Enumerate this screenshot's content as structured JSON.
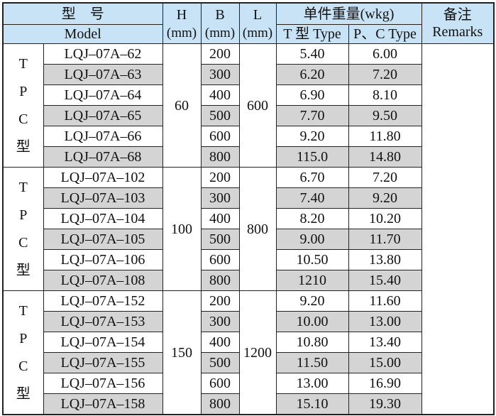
{
  "header": {
    "model_cn": "型　号",
    "model_en": "Model",
    "h": "H",
    "h_unit": "(mm)",
    "b": "B",
    "b_unit": "(mm)",
    "l": "L",
    "l_unit": "(mm)",
    "weight": "单件重量(wkg)",
    "t_type": "T 型 Type",
    "pc_type": "P、C Type",
    "remarks_cn": "备注",
    "remarks_en": "Remarks"
  },
  "groups": [
    {
      "label": [
        "T",
        "P",
        "C",
        "型"
      ],
      "h": "60",
      "l": "600",
      "rows": [
        [
          "LQJ–07A–62",
          "200",
          "5.40",
          "6.00"
        ],
        [
          "LQJ–07A–63",
          "300",
          "6.20",
          "7.20"
        ],
        [
          "LQJ–07A–64",
          "400",
          "6.90",
          "8.10"
        ],
        [
          "LQJ–07A–65",
          "500",
          "7.70",
          "9.50"
        ],
        [
          "LQJ–07A–66",
          "600",
          "9.20",
          "11.80"
        ],
        [
          "LQJ–07A–68",
          "800",
          "115.0",
          "14.80"
        ]
      ]
    },
    {
      "label": [
        "T",
        "P",
        "C",
        "型"
      ],
      "h": "100",
      "l": "800",
      "rows": [
        [
          "LQJ–07A–102",
          "200",
          "6.70",
          "7.20"
        ],
        [
          "LQJ–07A–103",
          "300",
          "7.40",
          "9.20"
        ],
        [
          "LQJ–07A–104",
          "400",
          "8.20",
          "10.20"
        ],
        [
          "LQJ–07A–105",
          "500",
          "9.00",
          "11.70"
        ],
        [
          "LQJ–07A–106",
          "600",
          "10.50",
          "13.80"
        ],
        [
          "LQJ–07A–108",
          "800",
          "1210",
          "15.40"
        ]
      ]
    },
    {
      "label": [
        "T",
        "P",
        "C",
        "型"
      ],
      "h": "150",
      "l": "1200",
      "rows": [
        [
          "LQJ–07A–152",
          "200",
          "9.20",
          "11.60"
        ],
        [
          "LQJ–07A–153",
          "300",
          "10.00",
          "13.00"
        ],
        [
          "LQJ–07A–154",
          "400",
          "10.80",
          "13.40"
        ],
        [
          "LQJ–07A–155",
          "500",
          "11.50",
          "15.00"
        ],
        [
          "LQJ–07A–156",
          "600",
          "13.00",
          "16.90"
        ],
        [
          "LQJ–07A–158",
          "800",
          "15.10",
          "19.30"
        ]
      ]
    }
  ]
}
